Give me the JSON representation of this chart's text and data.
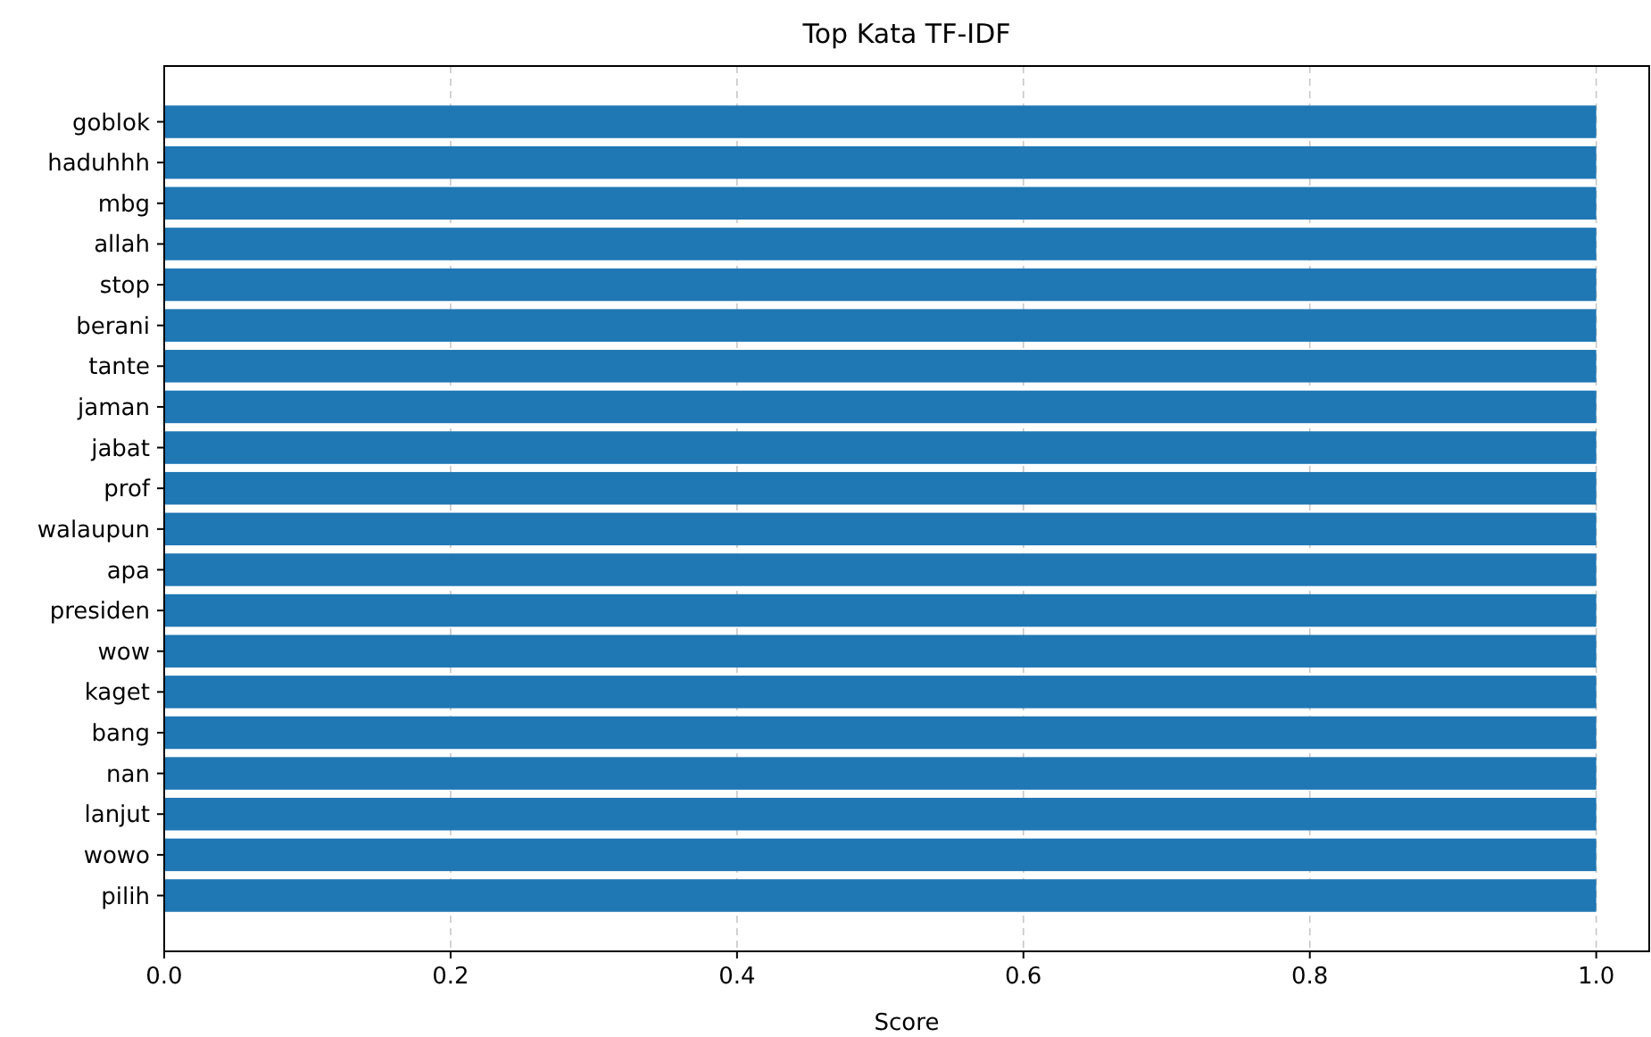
{
  "chart_data": {
    "type": "bar",
    "orientation": "horizontal",
    "title": "Top Kata TF-IDF",
    "xlabel": "Score",
    "categories": [
      "goblok",
      "haduhhh",
      "mbg",
      "allah",
      "stop",
      "berani",
      "tante",
      "jaman",
      "jabat",
      "prof",
      "walaupun",
      "apa",
      "presiden",
      "wow",
      "kaget",
      "bang",
      "nan",
      "lanjut",
      "wowo",
      "pilih"
    ],
    "values": [
      1,
      1,
      1,
      1,
      1,
      1,
      1,
      1,
      1,
      1,
      1,
      1,
      1,
      1,
      1,
      1,
      1,
      1,
      1,
      1
    ],
    "color": "#1f77b4",
    "xlim": [
      0,
      1.037
    ],
    "xticks": [
      {
        "value": 0,
        "label": "0.0"
      },
      {
        "value": 0.2,
        "label": "0.2"
      },
      {
        "value": 0.4,
        "label": "0.4"
      },
      {
        "value": 0.6,
        "label": "0.6"
      },
      {
        "value": 0.8,
        "label": "0.8"
      },
      {
        "value": 1,
        "label": "1.0"
      }
    ],
    "grid": "x"
  }
}
